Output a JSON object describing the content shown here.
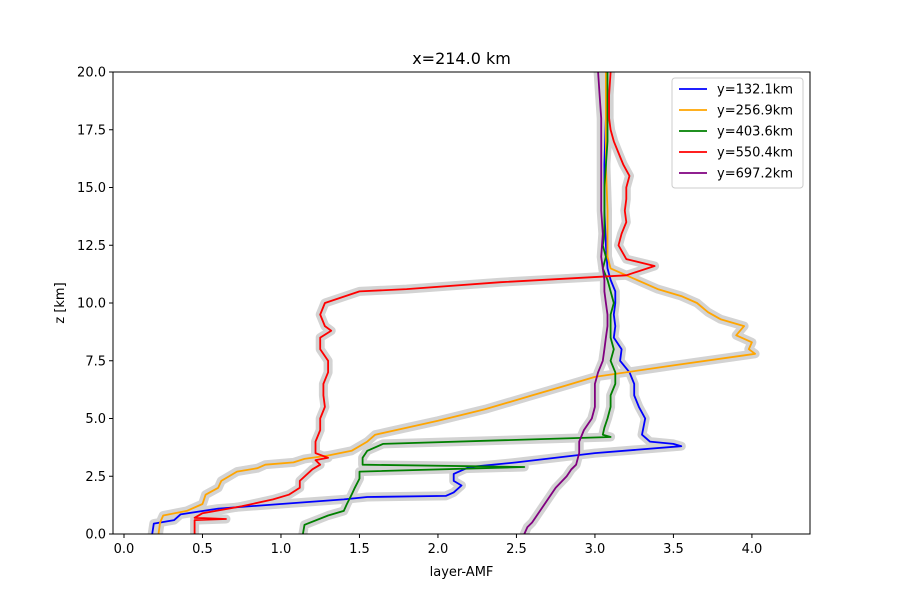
{
  "chart_data": {
    "type": "line",
    "title": "x=214.0 km",
    "xlabel": "layer-AMF",
    "ylabel": "z [km]",
    "xlim": [
      -0.07,
      4.37
    ],
    "ylim": [
      0,
      20
    ],
    "xticks": [
      "0.0",
      "0.5",
      "1.0",
      "1.5",
      "2.0",
      "2.5",
      "3.0",
      "3.5",
      "4.0"
    ],
    "yticks": [
      "0.0",
      "2.5",
      "5.0",
      "7.5",
      "10.0",
      "12.5",
      "15.0",
      "17.5",
      "20.0"
    ],
    "grid": false,
    "legend_position": "top-right",
    "uncertainty_band_color": "#d3d3d3",
    "series": [
      {
        "name": "y=132.1km",
        "color": "#0000ff",
        "points": [
          [
            0.18,
            0.0
          ],
          [
            0.19,
            0.45
          ],
          [
            0.32,
            0.6
          ],
          [
            0.36,
            0.85
          ],
          [
            0.6,
            1.1
          ],
          [
            1.0,
            1.3
          ],
          [
            1.4,
            1.5
          ],
          [
            1.55,
            1.6
          ],
          [
            2.05,
            1.65
          ],
          [
            2.1,
            1.8
          ],
          [
            2.15,
            2.1
          ],
          [
            2.1,
            2.3
          ],
          [
            2.1,
            2.6
          ],
          [
            2.2,
            2.9
          ],
          [
            2.5,
            3.1
          ],
          [
            3.0,
            3.5
          ],
          [
            3.55,
            3.8
          ],
          [
            3.5,
            3.9
          ],
          [
            3.35,
            4.0
          ],
          [
            3.3,
            4.3
          ],
          [
            3.32,
            5.0
          ],
          [
            3.28,
            5.5
          ],
          [
            3.25,
            6.0
          ],
          [
            3.25,
            6.5
          ],
          [
            3.22,
            7.0
          ],
          [
            3.16,
            7.5
          ],
          [
            3.17,
            8.0
          ],
          [
            3.12,
            8.5
          ],
          [
            3.13,
            9.0
          ],
          [
            3.12,
            9.5
          ],
          [
            3.13,
            10.0
          ],
          [
            3.13,
            10.5
          ],
          [
            3.1,
            11.0
          ],
          [
            3.08,
            11.5
          ],
          [
            3.07,
            12.5
          ],
          [
            3.06,
            14.0
          ],
          [
            3.06,
            16.0
          ],
          [
            3.07,
            18.0
          ],
          [
            3.07,
            20.0
          ]
        ]
      },
      {
        "name": "y=256.9km",
        "color": "#ffa500",
        "points": [
          [
            0.22,
            0.0
          ],
          [
            0.23,
            0.5
          ],
          [
            0.25,
            0.8
          ],
          [
            0.4,
            1.0
          ],
          [
            0.5,
            1.3
          ],
          [
            0.52,
            1.7
          ],
          [
            0.6,
            2.0
          ],
          [
            0.62,
            2.3
          ],
          [
            0.72,
            2.7
          ],
          [
            0.85,
            2.85
          ],
          [
            0.9,
            3.0
          ],
          [
            1.08,
            3.1
          ],
          [
            1.15,
            3.25
          ],
          [
            1.3,
            3.4
          ],
          [
            1.45,
            3.6
          ],
          [
            1.55,
            4.0
          ],
          [
            1.6,
            4.3
          ],
          [
            1.8,
            4.6
          ],
          [
            2.0,
            4.9
          ],
          [
            2.3,
            5.4
          ],
          [
            2.6,
            6.0
          ],
          [
            2.8,
            6.4
          ],
          [
            3.0,
            6.8
          ],
          [
            3.5,
            7.3
          ],
          [
            4.02,
            7.8
          ],
          [
            3.98,
            8.0
          ],
          [
            4.0,
            8.3
          ],
          [
            3.9,
            8.6
          ],
          [
            3.95,
            9.0
          ],
          [
            3.8,
            9.3
          ],
          [
            3.72,
            9.6
          ],
          [
            3.65,
            10.0
          ],
          [
            3.55,
            10.3
          ],
          [
            3.4,
            10.6
          ],
          [
            3.3,
            10.9
          ],
          [
            3.2,
            11.2
          ],
          [
            3.1,
            11.5
          ],
          [
            3.08,
            12.0
          ],
          [
            3.08,
            14.0
          ],
          [
            3.07,
            16.0
          ],
          [
            3.07,
            18.0
          ],
          [
            3.07,
            20.0
          ]
        ]
      },
      {
        "name": "y=403.6km",
        "color": "#008000",
        "points": [
          [
            1.14,
            0.0
          ],
          [
            1.15,
            0.4
          ],
          [
            1.3,
            0.8
          ],
          [
            1.4,
            1.0
          ],
          [
            1.42,
            1.3
          ],
          [
            1.45,
            1.7
          ],
          [
            1.47,
            2.0
          ],
          [
            1.5,
            2.4
          ],
          [
            1.5,
            2.7
          ],
          [
            2.55,
            2.9
          ],
          [
            1.52,
            3.0
          ],
          [
            1.52,
            3.3
          ],
          [
            1.55,
            3.6
          ],
          [
            1.65,
            3.9
          ],
          [
            3.1,
            4.2
          ],
          [
            3.05,
            4.3
          ],
          [
            3.06,
            4.6
          ],
          [
            3.08,
            5.0
          ],
          [
            3.1,
            5.5
          ],
          [
            3.1,
            6.0
          ],
          [
            3.13,
            6.5
          ],
          [
            3.13,
            7.0
          ],
          [
            3.1,
            7.5
          ],
          [
            3.12,
            8.0
          ],
          [
            3.1,
            8.5
          ],
          [
            3.1,
            9.0
          ],
          [
            3.1,
            9.5
          ],
          [
            3.12,
            10.0
          ],
          [
            3.1,
            10.5
          ],
          [
            3.08,
            11.0
          ],
          [
            3.05,
            11.5
          ],
          [
            3.07,
            12.0
          ],
          [
            3.05,
            12.5
          ],
          [
            3.06,
            13.0
          ],
          [
            3.06,
            15.0
          ],
          [
            3.08,
            17.0
          ],
          [
            3.08,
            19.0
          ],
          [
            3.08,
            20.0
          ]
        ]
      },
      {
        "name": "y=550.4km",
        "color": "#ff0000",
        "points": [
          [
            0.45,
            0.0
          ],
          [
            0.45,
            0.6
          ],
          [
            0.65,
            0.65
          ],
          [
            0.45,
            0.7
          ],
          [
            0.5,
            0.9
          ],
          [
            0.75,
            1.2
          ],
          [
            0.95,
            1.5
          ],
          [
            1.05,
            1.7
          ],
          [
            1.12,
            2.0
          ],
          [
            1.12,
            2.3
          ],
          [
            1.2,
            2.8
          ],
          [
            1.25,
            3.0
          ],
          [
            1.22,
            3.2
          ],
          [
            1.3,
            3.3
          ],
          [
            1.22,
            3.5
          ],
          [
            1.22,
            4.0
          ],
          [
            1.25,
            4.5
          ],
          [
            1.25,
            5.0
          ],
          [
            1.28,
            5.5
          ],
          [
            1.27,
            6.0
          ],
          [
            1.27,
            6.5
          ],
          [
            1.3,
            7.0
          ],
          [
            1.3,
            7.5
          ],
          [
            1.25,
            8.0
          ],
          [
            1.25,
            8.5
          ],
          [
            1.32,
            8.8
          ],
          [
            1.28,
            9.0
          ],
          [
            1.25,
            9.5
          ],
          [
            1.28,
            10.0
          ],
          [
            1.5,
            10.5
          ],
          [
            1.8,
            10.6
          ],
          [
            2.4,
            10.9
          ],
          [
            3.2,
            11.2
          ],
          [
            3.38,
            11.6
          ],
          [
            3.2,
            11.9
          ],
          [
            3.15,
            12.5
          ],
          [
            3.17,
            13.0
          ],
          [
            3.2,
            13.5
          ],
          [
            3.19,
            14.0
          ],
          [
            3.2,
            14.5
          ],
          [
            3.2,
            15.0
          ],
          [
            3.22,
            15.5
          ],
          [
            3.18,
            16.0
          ],
          [
            3.15,
            16.5
          ],
          [
            3.12,
            17.0
          ],
          [
            3.1,
            17.5
          ],
          [
            3.09,
            18.0
          ],
          [
            3.09,
            19.0
          ],
          [
            3.1,
            20.0
          ]
        ]
      },
      {
        "name": "y=697.2km",
        "color": "#800080",
        "points": [
          [
            2.55,
            0.0
          ],
          [
            2.57,
            0.3
          ],
          [
            2.6,
            0.5
          ],
          [
            2.65,
            1.0
          ],
          [
            2.7,
            1.5
          ],
          [
            2.75,
            2.0
          ],
          [
            2.82,
            2.5
          ],
          [
            2.85,
            2.8
          ],
          [
            2.88,
            3.0
          ],
          [
            2.9,
            3.5
          ],
          [
            2.9,
            4.0
          ],
          [
            2.93,
            4.5
          ],
          [
            2.98,
            5.0
          ],
          [
            3.0,
            5.5
          ],
          [
            3.0,
            6.0
          ],
          [
            3.0,
            6.5
          ],
          [
            3.02,
            7.0
          ],
          [
            3.05,
            7.5
          ],
          [
            3.06,
            8.0
          ],
          [
            3.07,
            8.5
          ],
          [
            3.08,
            9.0
          ],
          [
            3.08,
            9.5
          ],
          [
            3.07,
            10.0
          ],
          [
            3.06,
            10.5
          ],
          [
            3.06,
            11.0
          ],
          [
            3.05,
            11.5
          ],
          [
            3.04,
            12.0
          ],
          [
            3.05,
            13.0
          ],
          [
            3.04,
            14.0
          ],
          [
            3.04,
            15.0
          ],
          [
            3.04,
            16.0
          ],
          [
            3.04,
            17.0
          ],
          [
            3.04,
            18.0
          ],
          [
            3.03,
            19.0
          ],
          [
            3.02,
            20.0
          ]
        ]
      }
    ]
  }
}
